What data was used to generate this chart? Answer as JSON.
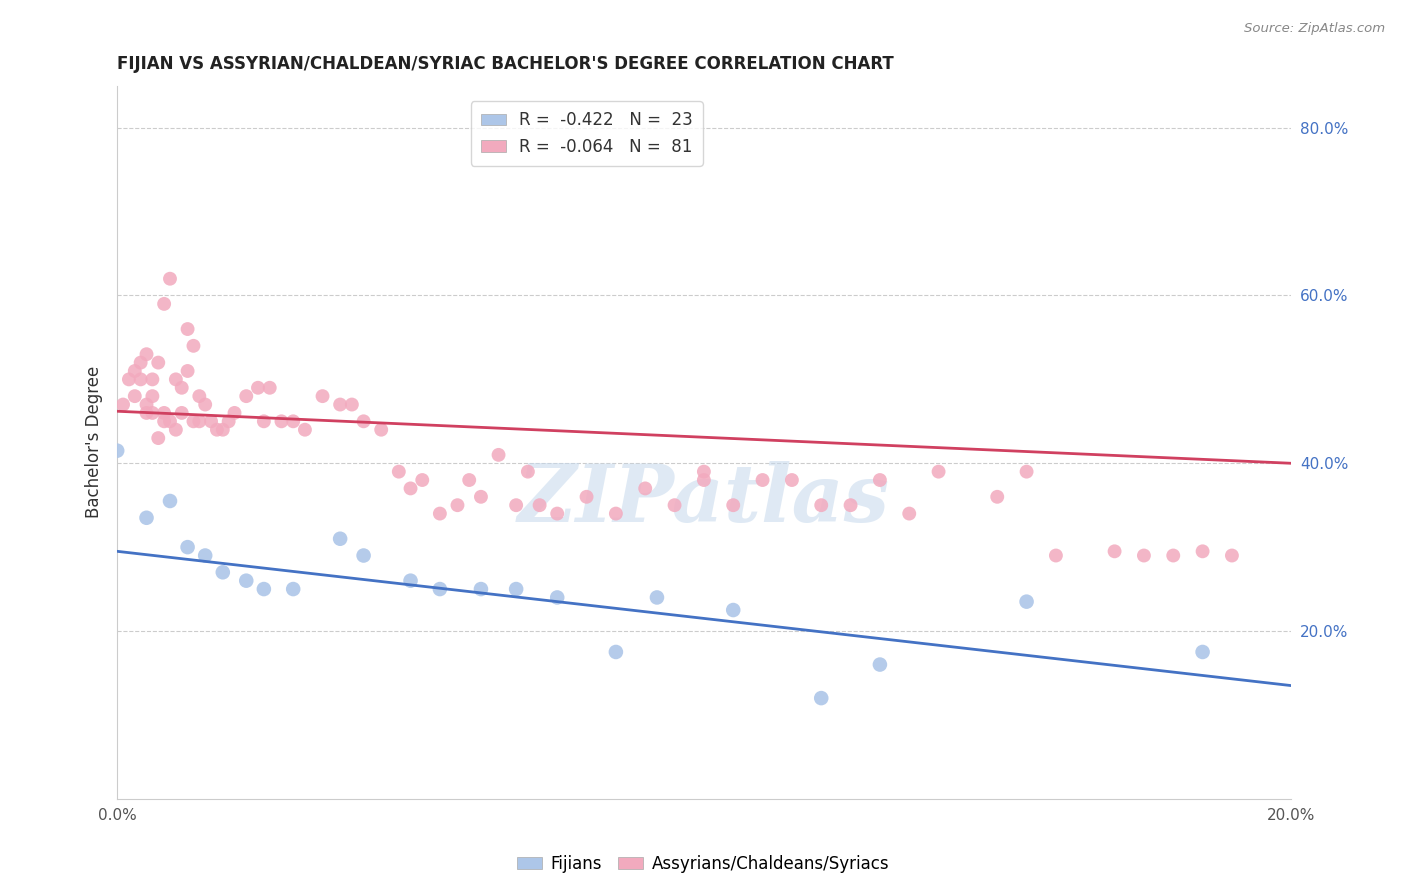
{
  "title": "FIJIAN VS ASSYRIAN/CHALDEAN/SYRIAC BACHELOR'S DEGREE CORRELATION CHART",
  "source": "Source: ZipAtlas.com",
  "ylabel": "Bachelor's Degree",
  "watermark": "ZIPatlas",
  "legend_r_blue": "-0.422",
  "legend_n_blue": "23",
  "legend_r_pink": "-0.064",
  "legend_n_pink": "81",
  "legend_label_blue": "Fijians",
  "legend_label_pink": "Assyrians/Chaldeans/Syriacs",
  "xlim": [
    0.0,
    0.2
  ],
  "ylim": [
    0.0,
    0.85
  ],
  "yticks": [
    0.2,
    0.4,
    0.6,
    0.8
  ],
  "ytick_labels": [
    "20.0%",
    "40.0%",
    "60.0%",
    "80.0%"
  ],
  "color_blue": "#adc6e8",
  "color_pink": "#f2aabe",
  "line_color_blue": "#4472c4",
  "line_color_pink": "#d04060",
  "grid_color": "#cccccc",
  "background_color": "#ffffff",
  "blue_line_x0": 0.0,
  "blue_line_y0": 0.295,
  "blue_line_x1": 0.2,
  "blue_line_y1": 0.135,
  "pink_line_x0": 0.0,
  "pink_line_y0": 0.462,
  "pink_line_x1": 0.2,
  "pink_line_y1": 0.4,
  "fijian_x": [
    0.0,
    0.005,
    0.009,
    0.012,
    0.015,
    0.018,
    0.022,
    0.025,
    0.03,
    0.038,
    0.042,
    0.05,
    0.055,
    0.062,
    0.068,
    0.075,
    0.085,
    0.092,
    0.105,
    0.12,
    0.13,
    0.155,
    0.185
  ],
  "fijian_y": [
    0.415,
    0.335,
    0.355,
    0.3,
    0.29,
    0.27,
    0.26,
    0.25,
    0.25,
    0.31,
    0.29,
    0.26,
    0.25,
    0.25,
    0.25,
    0.24,
    0.175,
    0.24,
    0.225,
    0.12,
    0.16,
    0.235,
    0.175
  ],
  "assyrian_x": [
    0.001,
    0.002,
    0.003,
    0.003,
    0.004,
    0.004,
    0.005,
    0.005,
    0.005,
    0.006,
    0.006,
    0.006,
    0.007,
    0.007,
    0.008,
    0.008,
    0.008,
    0.009,
    0.009,
    0.01,
    0.01,
    0.011,
    0.011,
    0.012,
    0.012,
    0.013,
    0.013,
    0.014,
    0.014,
    0.015,
    0.016,
    0.017,
    0.018,
    0.019,
    0.02,
    0.022,
    0.024,
    0.025,
    0.026,
    0.028,
    0.03,
    0.032,
    0.035,
    0.038,
    0.04,
    0.042,
    0.045,
    0.048,
    0.05,
    0.052,
    0.055,
    0.058,
    0.06,
    0.062,
    0.065,
    0.068,
    0.07,
    0.072,
    0.075,
    0.08,
    0.085,
    0.09,
    0.095,
    0.1,
    0.1,
    0.105,
    0.11,
    0.115,
    0.12,
    0.125,
    0.13,
    0.135,
    0.14,
    0.15,
    0.155,
    0.16,
    0.17,
    0.175,
    0.18,
    0.185,
    0.19
  ],
  "assyrian_y": [
    0.47,
    0.5,
    0.48,
    0.51,
    0.5,
    0.52,
    0.46,
    0.47,
    0.53,
    0.46,
    0.48,
    0.5,
    0.43,
    0.52,
    0.45,
    0.46,
    0.59,
    0.45,
    0.62,
    0.44,
    0.5,
    0.46,
    0.49,
    0.51,
    0.56,
    0.45,
    0.54,
    0.45,
    0.48,
    0.47,
    0.45,
    0.44,
    0.44,
    0.45,
    0.46,
    0.48,
    0.49,
    0.45,
    0.49,
    0.45,
    0.45,
    0.44,
    0.48,
    0.47,
    0.47,
    0.45,
    0.44,
    0.39,
    0.37,
    0.38,
    0.34,
    0.35,
    0.38,
    0.36,
    0.41,
    0.35,
    0.39,
    0.35,
    0.34,
    0.36,
    0.34,
    0.37,
    0.35,
    0.39,
    0.38,
    0.35,
    0.38,
    0.38,
    0.35,
    0.35,
    0.38,
    0.34,
    0.39,
    0.36,
    0.39,
    0.29,
    0.295,
    0.29,
    0.29,
    0.295,
    0.29
  ]
}
